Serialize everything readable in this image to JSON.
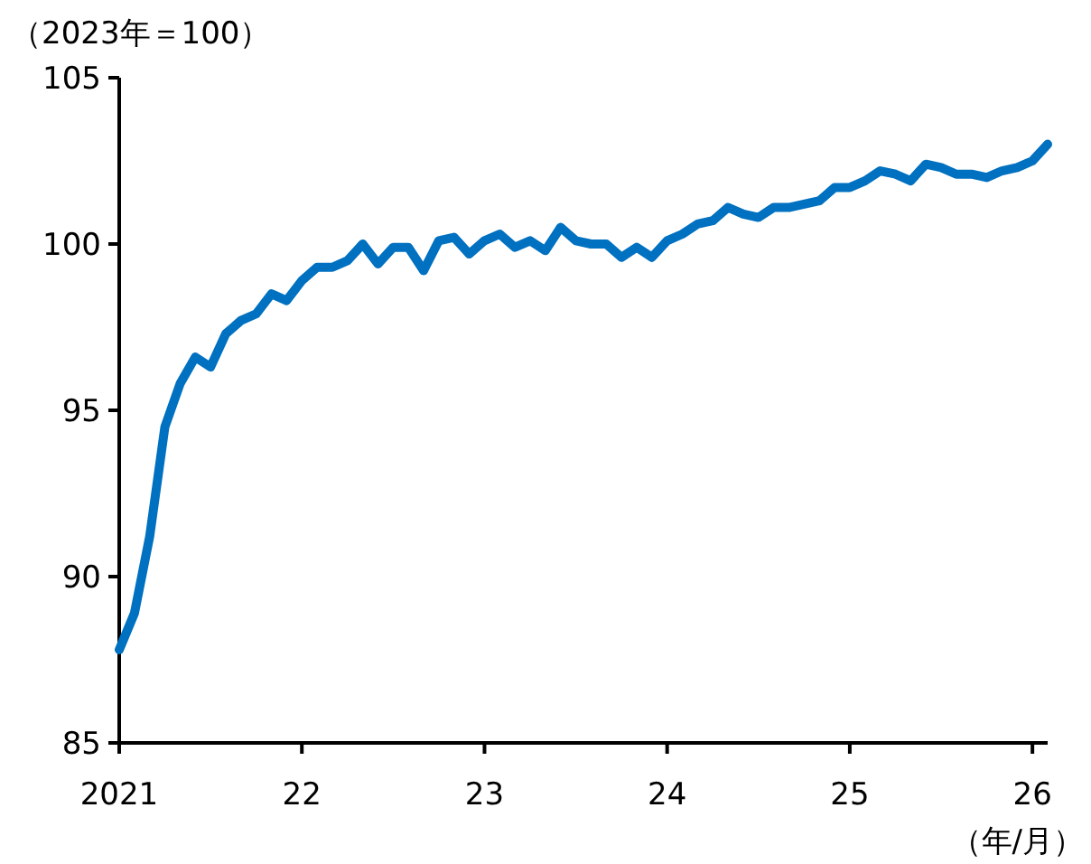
{
  "chart_data": {
    "type": "line",
    "ylabel": "（2023年＝100）",
    "xlabel": "（年/月）",
    "x": [
      "2021-01",
      "2021-02",
      "2021-03",
      "2021-04",
      "2021-05",
      "2021-06",
      "2021-07",
      "2021-08",
      "2021-09",
      "2021-10",
      "2021-11",
      "2021-12",
      "2022-01",
      "2022-02",
      "2022-03",
      "2022-04",
      "2022-05",
      "2022-06",
      "2022-07",
      "2022-08",
      "2022-09",
      "2022-10",
      "2022-11",
      "2022-12",
      "2023-01",
      "2023-02",
      "2023-03",
      "2023-04",
      "2023-05",
      "2023-06",
      "2023-07",
      "2023-08",
      "2023-09",
      "2023-10",
      "2023-11",
      "2023-12",
      "2024-01",
      "2024-02",
      "2024-03",
      "2024-04",
      "2024-05",
      "2024-06",
      "2024-07",
      "2024-08",
      "2024-09",
      "2024-10",
      "2024-11",
      "2024-12",
      "2025-01",
      "2025-02",
      "2025-03",
      "2025-04",
      "2025-05",
      "2025-06",
      "2025-07",
      "2025-08",
      "2025-09",
      "2025-10",
      "2025-11",
      "2025-12",
      "2026-01",
      "2026-02"
    ],
    "series": [
      {
        "color": "#0070c0",
        "values": [
          87.8,
          88.9,
          91.2,
          94.5,
          95.8,
          96.6,
          96.3,
          97.3,
          97.7,
          97.9,
          98.5,
          98.3,
          98.9,
          99.3,
          99.3,
          99.5,
          100.0,
          99.4,
          99.9,
          99.9,
          99.2,
          100.1,
          100.2,
          99.7,
          100.1,
          100.3,
          99.9,
          100.1,
          99.8,
          100.5,
          100.1,
          100.0,
          100.0,
          99.6,
          99.9,
          99.6,
          100.1,
          100.3,
          100.6,
          100.7,
          101.1,
          100.9,
          100.8,
          101.1,
          101.1,
          101.2,
          101.3,
          101.7,
          101.7,
          101.9,
          102.2,
          102.1,
          101.9,
          102.4,
          102.3,
          102.1,
          102.1,
          102.0,
          102.2,
          102.3,
          102.5,
          103.0
        ]
      }
    ],
    "xlim": [
      "2021-01",
      "2026-02"
    ],
    "xticks": [
      {
        "value": "2021-01",
        "label": "2021"
      },
      {
        "value": "2022-01",
        "label": "22"
      },
      {
        "value": "2023-01",
        "label": "23"
      },
      {
        "value": "2024-01",
        "label": "24"
      },
      {
        "value": "2025-01",
        "label": "25"
      },
      {
        "value": "2026-01",
        "label": "26"
      }
    ],
    "ylim": [
      85,
      105
    ],
    "yticks": [
      85,
      90,
      95,
      100,
      105
    ],
    "line_style": "solid"
  }
}
